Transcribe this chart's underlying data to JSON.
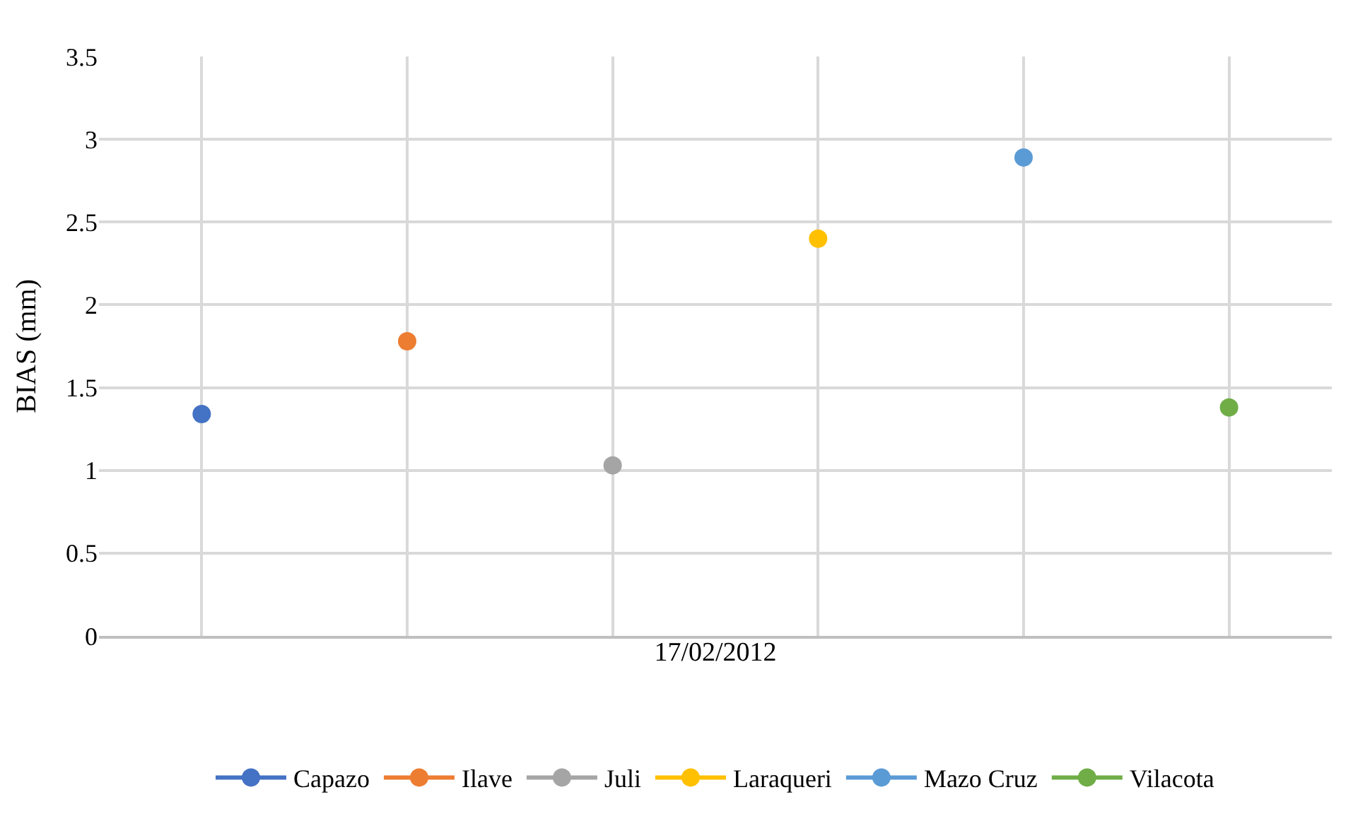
{
  "chart_data": {
    "type": "line",
    "ylabel": "BIAS (mm)",
    "xlabel": "17/02/2012",
    "marker": "circle",
    "grid": true,
    "legend": "bottom",
    "categories": [
      null,
      null,
      null,
      null,
      null,
      null
    ],
    "ylim": [
      0,
      3.5
    ],
    "yticks": [
      0,
      0.5,
      1,
      1.5,
      2,
      2.5,
      3,
      3.5
    ],
    "series": [
      {
        "name": "Capazo",
        "color": "#4472c4",
        "values": [
          1.34,
          null,
          null,
          null,
          null,
          null
        ]
      },
      {
        "name": "Ilave",
        "color": "#ed7d31",
        "values": [
          null,
          1.78,
          null,
          null,
          null,
          null
        ]
      },
      {
        "name": "Juli",
        "color": "#a5a5a5",
        "values": [
          null,
          null,
          1.03,
          null,
          null,
          null
        ]
      },
      {
        "name": "Laraqueri",
        "color": "#ffc000",
        "values": [
          null,
          null,
          null,
          2.4,
          null,
          null
        ]
      },
      {
        "name": "Mazo Cruz",
        "color": "#5b9bd5",
        "values": [
          null,
          null,
          null,
          null,
          2.89,
          null
        ]
      },
      {
        "name": "Vilacota",
        "color": "#70ad47",
        "values": [
          null,
          null,
          null,
          null,
          null,
          1.38
        ]
      }
    ]
  }
}
